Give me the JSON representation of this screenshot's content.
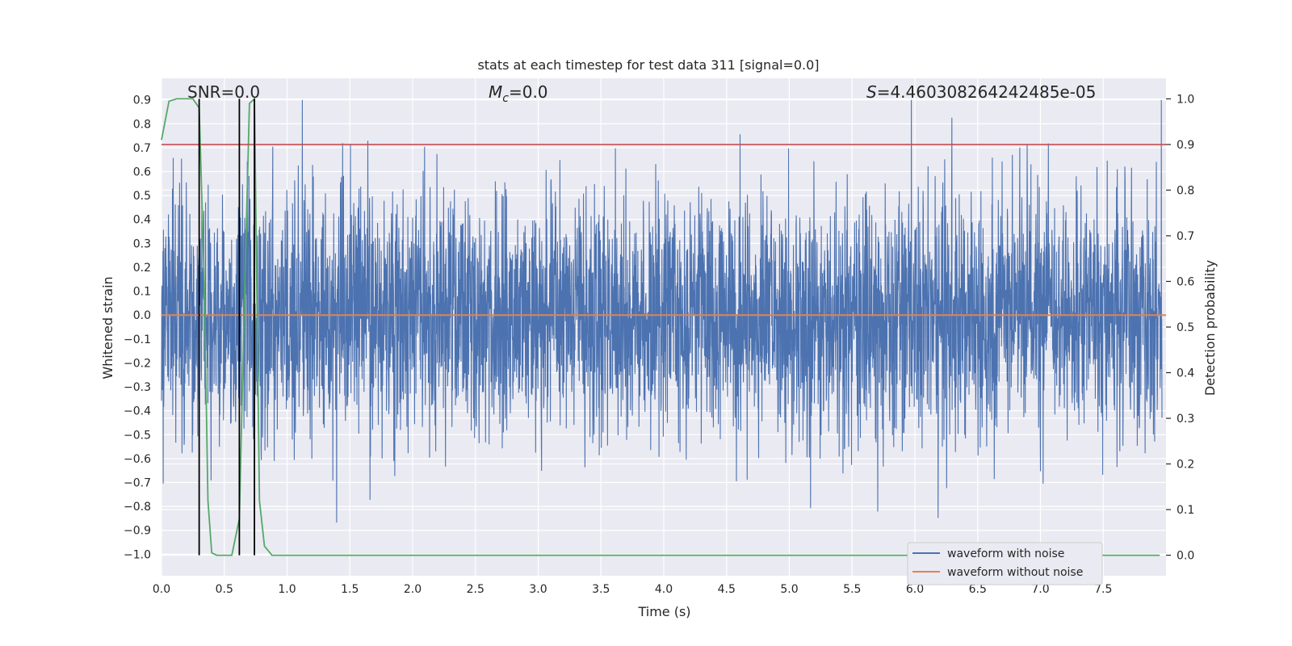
{
  "chart_data": {
    "type": "line",
    "title": "stats at each timestep for test data 311 [signal=0.0]",
    "xlabel": "Time (s)",
    "ylabel": "Whitened strain",
    "y2label": "Detection probability",
    "xlim": [
      0.0,
      8.0
    ],
    "ylim": [
      -1.09,
      0.99
    ],
    "y2lim": [
      -0.045,
      1.045
    ],
    "xticks": [
      "0.0",
      "0.5",
      "1.0",
      "1.5",
      "2.0",
      "2.5",
      "3.0",
      "3.5",
      "4.0",
      "4.5",
      "5.0",
      "5.5",
      "6.0",
      "6.5",
      "7.0",
      "7.5"
    ],
    "xtick_values": [
      0.0,
      0.5,
      1.0,
      1.5,
      2.0,
      2.5,
      3.0,
      3.5,
      4.0,
      4.5,
      5.0,
      5.5,
      6.0,
      6.5,
      7.0,
      7.5
    ],
    "yticks": [
      "0.9",
      "0.8",
      "0.7",
      "0.6",
      "0.5",
      "0.4",
      "0.3",
      "0.2",
      "0.1",
      "0.0",
      "−0.1",
      "−0.2",
      "−0.3",
      "−0.4",
      "−0.5",
      "−0.6",
      "−0.7",
      "−0.8",
      "−0.9",
      "−1.0"
    ],
    "ytick_values": [
      0.9,
      0.8,
      0.7,
      0.6,
      0.5,
      0.4,
      0.3,
      0.2,
      0.1,
      0.0,
      -0.1,
      -0.2,
      -0.3,
      -0.4,
      -0.5,
      -0.6,
      -0.7,
      -0.8,
      -0.9,
      -1.0
    ],
    "y2ticks": [
      "1.0",
      "0.9",
      "0.8",
      "0.7",
      "0.6",
      "0.5",
      "0.4",
      "0.3",
      "0.2",
      "0.1",
      "0.0"
    ],
    "y2tick_values": [
      1.0,
      0.9,
      0.8,
      0.7,
      0.6,
      0.5,
      0.4,
      0.3,
      0.2,
      0.1,
      0.0
    ],
    "annotations": {
      "snr": "SNR=0.0",
      "mc_symbol": "M",
      "mc_sub": "c",
      "mc_value": "=0.0",
      "s_symbol": "S",
      "s_value": "=4.460308264242485e-05"
    },
    "threshold_y2": 0.9,
    "trigger_times": [
      0.3,
      0.62,
      0.74
    ],
    "series": [
      {
        "name": "waveform with noise",
        "color": "#4c72b0",
        "noise_sigma": 0.25,
        "peak_max": 0.9,
        "peak_min": -1.0
      },
      {
        "name": "waveform without noise",
        "color": "#dd8452",
        "values": [
          0.0,
          0.0
        ]
      },
      {
        "name": "detection probability",
        "color": "#55a868",
        "axis": "right",
        "x": [
          0.0,
          0.06,
          0.12,
          0.19,
          0.25,
          0.3,
          0.34,
          0.37,
          0.4,
          0.44,
          0.5,
          0.56,
          0.62,
          0.66,
          0.7,
          0.74,
          0.78,
          0.82,
          0.88,
          7.95
        ],
        "values": [
          0.91,
          0.995,
          1.0,
          1.0,
          1.0,
          0.98,
          0.6,
          0.12,
          0.005,
          0.0,
          0.0,
          0.0,
          0.08,
          0.55,
          0.99,
          1.0,
          0.12,
          0.02,
          0.0,
          0.0
        ]
      }
    ],
    "threshold_color": "#c44e52",
    "trigger_color": "#000000",
    "legend": {
      "position": "lower-right",
      "entries": [
        "waveform with noise",
        "waveform without noise"
      ]
    }
  }
}
